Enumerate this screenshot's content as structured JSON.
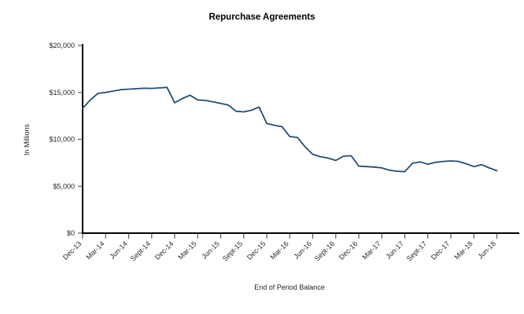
{
  "page": {
    "background": "#ffffff"
  },
  "chart_data": {
    "type": "line",
    "title": "Repurchase Agreements",
    "xlabel": "End of Period Balance",
    "ylabel": "In Millions",
    "ylim": [
      0,
      20000
    ],
    "ytick_interval": 5000,
    "ytick_labels": [
      "$0",
      "$5,000",
      "$10,000",
      "$15,000",
      "$20,000"
    ],
    "xtick_every": 3,
    "xtick_labels": [
      "Dec-13",
      "Mar-14",
      "Jun-14",
      "Sept-14",
      "Dec-14",
      "Mar-15",
      "Jun-15",
      "Sept-15",
      "Dec-15",
      "Mar-16",
      "Jun-16",
      "Sept-16",
      "Dec-16",
      "Mar-17",
      "Jun-17",
      "Sept-17",
      "Dec-17",
      "Mar-18",
      "Jun-18"
    ],
    "x": [
      "Dec-13",
      "Jan-14",
      "Feb-14",
      "Mar-14",
      "Apr-14",
      "May-14",
      "Jun-14",
      "Jul-14",
      "Aug-14",
      "Sept-14",
      "Oct-14",
      "Nov-14",
      "Dec-14",
      "Jan-15",
      "Feb-15",
      "Mar-15",
      "Apr-15",
      "May-15",
      "Jun-15",
      "Jul-15",
      "Aug-15",
      "Sept-15",
      "Oct-15",
      "Nov-15",
      "Dec-15",
      "Jan-16",
      "Feb-16",
      "Mar-16",
      "Apr-16",
      "May-16",
      "Jun-16",
      "Jul-16",
      "Aug-16",
      "Sept-16",
      "Oct-16",
      "Nov-16",
      "Dec-16",
      "Jan-17",
      "Feb-17",
      "Mar-17",
      "Apr-17",
      "May-17",
      "Jun-17",
      "Jul-17",
      "Aug-17",
      "Sept-17",
      "Oct-17",
      "Nov-17",
      "Dec-17",
      "Jan-18",
      "Feb-18",
      "Mar-18",
      "Apr-18",
      "May-18",
      "Jun-18"
    ],
    "series": [
      {
        "name": "End of Period Balance",
        "color": "#1F4E79",
        "values": [
          13300,
          14200,
          14900,
          15000,
          15150,
          15300,
          15350,
          15400,
          15450,
          15430,
          15480,
          15540,
          13900,
          14350,
          14700,
          14200,
          14150,
          14000,
          13830,
          13650,
          13000,
          12930,
          13100,
          13450,
          11700,
          11500,
          11350,
          10300,
          10200,
          9200,
          8400,
          8150,
          8000,
          7750,
          8200,
          8250,
          7150,
          7100,
          7050,
          6950,
          6700,
          6600,
          6550,
          7450,
          7600,
          7350,
          7550,
          7650,
          7700,
          7650,
          7400,
          7100,
          7300,
          6950,
          6650
        ]
      }
    ],
    "legend": "none",
    "grid": false,
    "axis_color": "#000000",
    "tick_color": "#595959"
  }
}
